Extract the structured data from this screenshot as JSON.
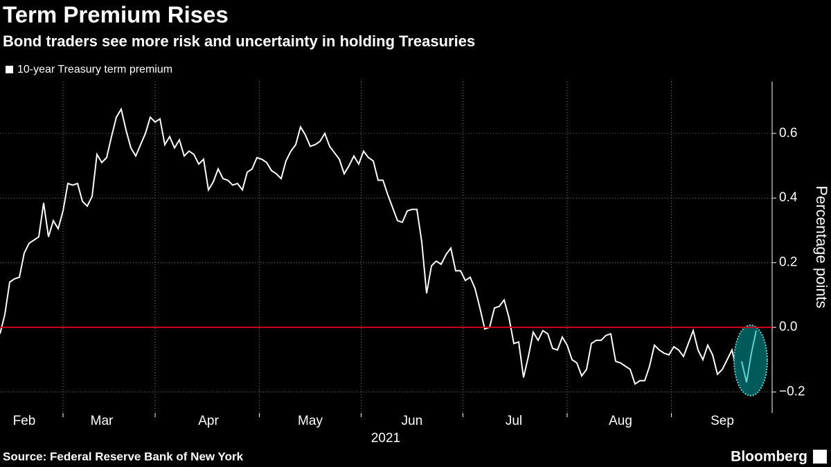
{
  "chart_data": {
    "type": "line",
    "title": "Term Premium Rises",
    "subtitle": "Bond traders see more risk and uncertainty in holding Treasuries",
    "y_label": "Percentage points",
    "x_label": "2021",
    "source": "Source: Federal Reserve Bank of New York",
    "brand": "Bloomberg",
    "categories": [
      null,
      null,
      null,
      null,
      null,
      "Feb",
      null,
      null,
      null,
      null,
      null,
      null,
      null,
      null,
      null,
      null,
      null,
      null,
      null,
      null,
      null,
      "Mar",
      null,
      null,
      null,
      null,
      null,
      null,
      null,
      null,
      null,
      null,
      null,
      null,
      null,
      null,
      null,
      null,
      null,
      null,
      null,
      null,
      null,
      "Apr",
      null,
      null,
      null,
      null,
      null,
      null,
      null,
      null,
      null,
      null,
      null,
      null,
      null,
      null,
      null,
      null,
      null,
      null,
      null,
      null,
      "May",
      null,
      null,
      null,
      null,
      null,
      null,
      null,
      null,
      null,
      null,
      null,
      null,
      null,
      null,
      null,
      null,
      null,
      null,
      null,
      null,
      "Jun",
      null,
      null,
      null,
      null,
      null,
      null,
      null,
      null,
      null,
      null,
      null,
      null,
      null,
      null,
      null,
      null,
      null,
      null,
      null,
      null,
      "Jul",
      null,
      null,
      null,
      null,
      null,
      null,
      null,
      null,
      null,
      null,
      null,
      null,
      null,
      null,
      null,
      null,
      null,
      null,
      null,
      null,
      null,
      "Aug",
      null,
      null,
      null,
      null,
      null,
      null,
      null,
      null,
      null,
      null,
      null,
      null,
      null,
      null,
      null,
      null,
      null,
      null,
      null,
      null,
      "Sep",
      null,
      null,
      null,
      null,
      null,
      null,
      null
    ],
    "series": [
      {
        "name": "10-year Treasury term premium",
        "color": "#ffffff",
        "values": [
          -0.02,
          0.04,
          0.14,
          0.15,
          0.155,
          0.23,
          0.26,
          0.27,
          0.28,
          0.385,
          0.28,
          0.33,
          0.305,
          0.36,
          0.445,
          0.44,
          0.445,
          0.39,
          0.375,
          0.405,
          0.535,
          0.51,
          0.525,
          0.59,
          0.65,
          0.675,
          0.61,
          0.555,
          0.53,
          0.565,
          0.6,
          0.65,
          0.635,
          0.645,
          0.565,
          0.59,
          0.555,
          0.58,
          0.53,
          0.545,
          0.535,
          0.505,
          0.52,
          0.425,
          0.45,
          0.49,
          0.46,
          0.455,
          0.44,
          0.445,
          0.425,
          0.48,
          0.49,
          0.525,
          0.52,
          0.51,
          0.485,
          0.475,
          0.46,
          0.515,
          0.545,
          0.565,
          0.62,
          0.595,
          0.56,
          0.565,
          0.575,
          0.6,
          0.56,
          0.54,
          0.52,
          0.475,
          0.5,
          0.53,
          0.505,
          0.545,
          0.525,
          0.515,
          0.455,
          0.455,
          0.41,
          0.37,
          0.33,
          0.325,
          0.36,
          0.365,
          0.365,
          0.265,
          0.105,
          0.19,
          0.205,
          0.195,
          0.225,
          0.245,
          0.175,
          0.175,
          0.145,
          0.155,
          0.12,
          0.06,
          -0.005,
          0.0,
          0.06,
          0.065,
          0.085,
          0.03,
          -0.05,
          -0.045,
          -0.155,
          -0.09,
          -0.015,
          -0.04,
          -0.01,
          -0.02,
          -0.065,
          -0.07,
          -0.03,
          -0.055,
          -0.1,
          -0.11,
          -0.15,
          -0.13,
          -0.05,
          -0.04,
          -0.04,
          -0.025,
          -0.02,
          -0.105,
          -0.11,
          -0.12,
          -0.13,
          -0.175,
          -0.165,
          -0.165,
          -0.12,
          -0.055,
          -0.07,
          -0.08,
          -0.085,
          -0.06,
          -0.07,
          -0.09,
          -0.05,
          -0.01,
          -0.07,
          -0.1,
          -0.055,
          -0.085,
          -0.145,
          -0.13,
          -0.1,
          -0.07,
          -0.135,
          -0.105,
          -0.17,
          -0.08,
          -0.01
        ]
      }
    ],
    "highlight_color": "#5fd3d3",
    "zero_line_color": "#d0021b",
    "ylim": [
      -0.265,
      0.76
    ],
    "yticks": [
      {
        "value": -0.2,
        "label": "−0.2"
      },
      {
        "value": 0,
        "label": "0.0"
      },
      0.2,
      0.4,
      0.6
    ],
    "grid": true
  }
}
